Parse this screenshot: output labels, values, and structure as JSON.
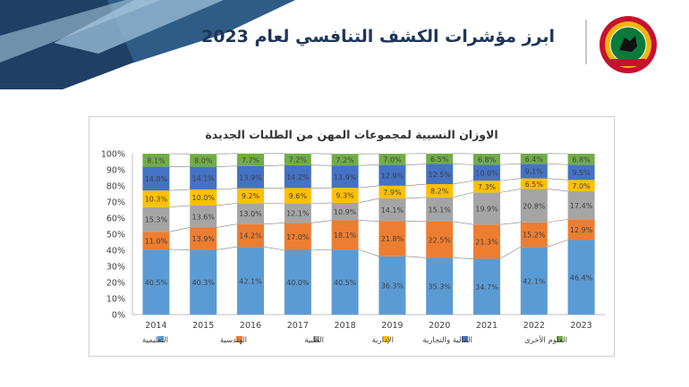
{
  "header": {
    "title": "ابرز مؤشرات الكشف التنافسي لعام 2023",
    "logo_icon": "jordan-emblem-logo-icon"
  },
  "colors": {
    "title_text": "#1f3557",
    "decor_dark": "#1f3f64",
    "decor_light": "#8fb4cf"
  },
  "chart_data": {
    "type": "stacked-bar",
    "title": "الاوزان النسبية لمجموعات المهن من الطلبات الجديدة",
    "categories": [
      "2014",
      "2015",
      "2016",
      "2017",
      "2018",
      "2019",
      "2020",
      "2021",
      "2022",
      "2023"
    ],
    "ylim": [
      0,
      100
    ],
    "yticks": [
      "0%",
      "10%",
      "20%",
      "30%",
      "40%",
      "50%",
      "60%",
      "70%",
      "80%",
      "90%",
      "100%"
    ],
    "grid": false,
    "legend_position": "bottom",
    "series_lines": true,
    "series": [
      {
        "name": "التعليمية",
        "color": "#5b9bd5",
        "values": [
          40.5,
          40.3,
          42.1,
          40.0,
          40.5,
          36.3,
          35.3,
          34.7,
          42.1,
          46.4
        ],
        "labels": [
          "40.5%",
          "40.3%",
          "42.1%",
          "40.0%",
          "40.5%",
          "36.3%",
          "35.3%",
          "34.7%",
          "42.1%",
          "46.4%"
        ]
      },
      {
        "name": "الهندسية",
        "color": "#ed7d31",
        "values": [
          11.0,
          13.9,
          14.2,
          17.0,
          18.1,
          21.8,
          22.5,
          21.3,
          15.2,
          12.9
        ],
        "labels": [
          "11.0%",
          "13.9%",
          "14.2%",
          "17.0%",
          "18.1%",
          "21.8%",
          "22.5%",
          "21.3%",
          "15.2%",
          "12.9%"
        ]
      },
      {
        "name": "الطبية",
        "color": "#a5a5a5",
        "values": [
          15.3,
          13.6,
          13.0,
          12.1,
          10.9,
          14.1,
          15.1,
          19.9,
          20.8,
          17.4
        ],
        "labels": [
          "15.3%",
          "13.6%",
          "13.0%",
          "12.1%",
          "10.9%",
          "14.1%",
          "15.1%",
          "19.9%",
          "20.8%",
          "17.4%"
        ]
      },
      {
        "name": "الإدارية",
        "color": "#ffc000",
        "values": [
          10.3,
          10.0,
          9.2,
          9.6,
          9.3,
          7.9,
          8.2,
          7.3,
          6.5,
          7.0
        ],
        "labels": [
          "10.3%",
          "10.0%",
          "9.2%",
          "9.6%",
          "9.3%",
          "7.9%",
          "8.2%",
          "7.3%",
          "6.5%",
          "7.0%"
        ]
      },
      {
        "name": "المالية والتجارية",
        "color": "#4472c4",
        "values": [
          14.8,
          14.1,
          13.9,
          14.2,
          13.9,
          12.9,
          12.5,
          10.0,
          9.1,
          9.5
        ],
        "labels": [
          "14.8%",
          "14.1%",
          "13.9%",
          "14.2%",
          "13.9%",
          "12.9%",
          "12.5%",
          "10.0%",
          "9.1%",
          "9.5%"
        ]
      },
      {
        "name": "العلوم الأخرى",
        "color": "#70ad47",
        "values": [
          8.1,
          8.0,
          7.7,
          7.2,
          7.2,
          7.0,
          6.5,
          6.8,
          6.4,
          6.8
        ],
        "labels": [
          "8.1%",
          "8.0%",
          "7.7%",
          "7.2%",
          "7.2%",
          "7.0%",
          "6.5%",
          "6.8%",
          "6.4%",
          "6.8%"
        ]
      }
    ]
  }
}
